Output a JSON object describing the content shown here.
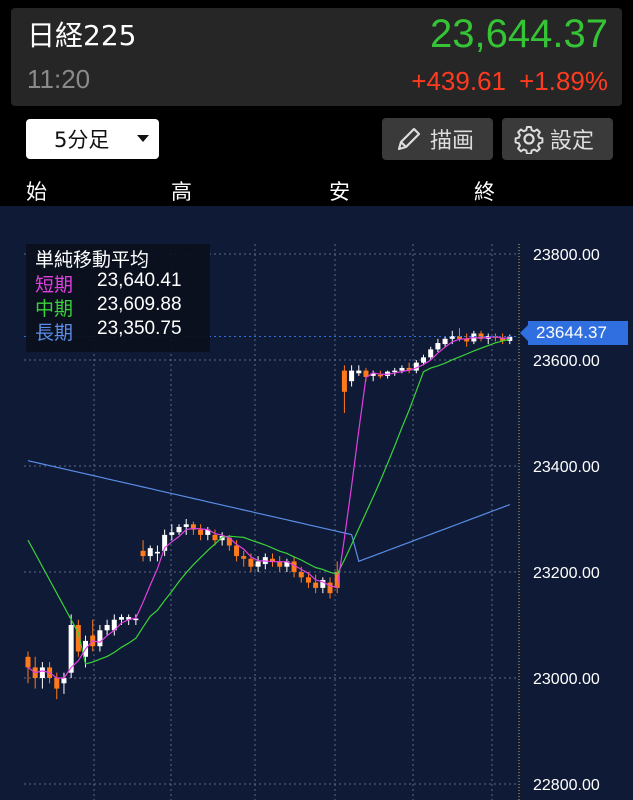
{
  "header": {
    "symbol": "日経225",
    "time": "11:20",
    "price": "23,644.37",
    "change": "+439.61",
    "change_pct": "+1.89%"
  },
  "toolbar": {
    "interval_label": "5分足",
    "draw_label": "描画",
    "settings_label": "設定",
    "draw_icon": "pencil-icon",
    "settings_icon": "gear-icon"
  },
  "ohlc_labels": [
    "始",
    "高",
    "安",
    "終"
  ],
  "legend": {
    "title": "単純移動平均",
    "rows": [
      {
        "label": "短期",
        "value": "23,640.41",
        "color": "#e040e0"
      },
      {
        "label": "中期",
        "value": "23,609.88",
        "color": "#3ad23a"
      },
      {
        "label": "長期",
        "value": "23,350.75",
        "color": "#5a8ee8"
      }
    ]
  },
  "current_price_tag": "23644.37",
  "colors": {
    "up": "#ffffff",
    "down": "#ff7a1a",
    "background": "#0f1a36",
    "price_up": "#35c435",
    "price_change": "#ff3b1f"
  },
  "chart_data": {
    "type": "candlestick",
    "ylim": [
      22800,
      23800
    ],
    "yticks": [
      "23800.00",
      "23600.00",
      "23400.00",
      "23200.00",
      "23000.00",
      "22800.00"
    ],
    "ytick_values": [
      23800,
      23600,
      23400,
      23200,
      23000,
      22800
    ],
    "grid": true,
    "candles": [
      [
        23040,
        23050,
        22990,
        23020
      ],
      [
        23020,
        23040,
        22980,
        23000
      ],
      [
        23000,
        23030,
        22980,
        23020
      ],
      [
        23020,
        23030,
        22990,
        23000
      ],
      [
        23000,
        23010,
        22960,
        22980
      ],
      [
        22990,
        23010,
        22970,
        23000
      ],
      [
        23010,
        23120,
        23000,
        23100
      ],
      [
        23100,
        23110,
        23040,
        23050
      ],
      [
        23040,
        23080,
        23020,
        23070
      ],
      [
        23080,
        23110,
        23050,
        23060
      ],
      [
        23060,
        23100,
        23050,
        23090
      ],
      [
        23090,
        23110,
        23080,
        23100
      ],
      [
        23090,
        23120,
        23080,
        23110
      ],
      [
        23110,
        23120,
        23100,
        23115
      ],
      [
        23110,
        23120,
        23100,
        23115
      ],
      [
        23110,
        23120,
        23100,
        23112
      ],
      [
        23240,
        23260,
        23220,
        23230
      ],
      [
        23230,
        23250,
        23220,
        23245
      ],
      [
        23235,
        23250,
        23220,
        23238
      ],
      [
        23240,
        23280,
        23230,
        23270
      ],
      [
        23270,
        23290,
        23260,
        23275
      ],
      [
        23275,
        23290,
        23270,
        23285
      ],
      [
        23285,
        23300,
        23270,
        23290
      ],
      [
        23290,
        23295,
        23270,
        23280
      ],
      [
        23280,
        23290,
        23260,
        23270
      ],
      [
        23270,
        23285,
        23260,
        23280
      ],
      [
        23270,
        23280,
        23250,
        23260
      ],
      [
        23260,
        23275,
        23250,
        23268
      ],
      [
        23265,
        23270,
        23240,
        23250
      ],
      [
        23250,
        23260,
        23220,
        23230
      ],
      [
        23230,
        23240,
        23210,
        23225
      ],
      [
        23225,
        23235,
        23200,
        23210
      ],
      [
        23210,
        23230,
        23200,
        23220
      ],
      [
        23215,
        23235,
        23205,
        23228
      ],
      [
        23225,
        23235,
        23210,
        23220
      ],
      [
        23220,
        23230,
        23200,
        23210
      ],
      [
        23210,
        23225,
        23200,
        23220
      ],
      [
        23220,
        23230,
        23190,
        23200
      ],
      [
        23200,
        23210,
        23180,
        23190
      ],
      [
        23190,
        23200,
        23170,
        23180
      ],
      [
        23180,
        23195,
        23160,
        23170
      ],
      [
        23170,
        23190,
        23160,
        23185
      ],
      [
        23180,
        23190,
        23150,
        23160
      ],
      [
        23200,
        23220,
        23160,
        23170
      ],
      [
        23580,
        23590,
        23500,
        23540
      ],
      [
        23560,
        23590,
        23550,
        23580
      ],
      [
        23575,
        23590,
        23570,
        23580
      ],
      [
        23580,
        23585,
        23560,
        23568
      ],
      [
        23570,
        23580,
        23560,
        23575
      ],
      [
        23572,
        23580,
        23565,
        23570
      ],
      [
        23570,
        23580,
        23565,
        23578
      ],
      [
        23578,
        23585,
        23570,
        23580
      ],
      [
        23580,
        23590,
        23575,
        23585
      ],
      [
        23585,
        23595,
        23575,
        23580
      ],
      [
        23580,
        23600,
        23575,
        23595
      ],
      [
        23595,
        23610,
        23590,
        23605
      ],
      [
        23605,
        23625,
        23600,
        23620
      ],
      [
        23620,
        23640,
        23615,
        23632
      ],
      [
        23630,
        23645,
        23625,
        23640
      ],
      [
        23640,
        23655,
        23630,
        23645
      ],
      [
        23645,
        23660,
        23635,
        23640
      ],
      [
        23640,
        23650,
        23625,
        23635
      ],
      [
        23635,
        23655,
        23630,
        23650
      ],
      [
        23650,
        23655,
        23635,
        23640
      ],
      [
        23640,
        23650,
        23630,
        23645
      ],
      [
        23645,
        23650,
        23635,
        23642
      ],
      [
        23642,
        23650,
        23630,
        23636
      ],
      [
        23636,
        23648,
        23630,
        23644
      ]
    ]
  }
}
